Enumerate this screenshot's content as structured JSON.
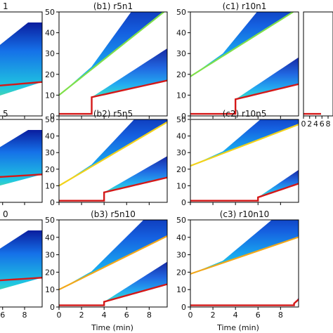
{
  "chart_data": {
    "type": "heatmap",
    "xlabel": "Time (min)",
    "xlim": [
      0,
      9.6
    ],
    "ylim": [
      0,
      50
    ],
    "xticks": [
      0,
      2,
      4,
      6,
      8
    ],
    "yticks": [
      0,
      10,
      20,
      30,
      40,
      50
    ],
    "panels": [
      {
        "id": "a1",
        "title": "1",
        "start": [
          0,
          10
        ],
        "slope": 1.6,
        "step_t": 0,
        "step_floor": 12,
        "floor_slope": 0.45,
        "ridge_color": "#39d98a",
        "partial": true
      },
      {
        "id": "b1",
        "title": "(b1) r5n1",
        "start": [
          0,
          10
        ],
        "slope": 4.3,
        "step_t": 2.9,
        "step_floor": 9,
        "floor_slope": 1.2,
        "ridge_color": "#7fe04a"
      },
      {
        "id": "c1",
        "title": "(c1) r10n1",
        "start": [
          0,
          19
        ],
        "slope": 3.4,
        "step_t": 4.0,
        "step_floor": 8,
        "floor_slope": 1.3,
        "ridge_color": "#7fe04a"
      },
      {
        "id": "d1",
        "title": "",
        "partial": true,
        "empty": true
      },
      {
        "id": "a2",
        "title": "5",
        "start": [
          0,
          12
        ],
        "slope": 1.4,
        "step_t": 0,
        "step_floor": 13,
        "floor_slope": 0.4,
        "ridge_color": "#39d98a",
        "partial": true
      },
      {
        "id": "b2",
        "title": "(b2) r5n5",
        "start": [
          0,
          10
        ],
        "slope": 4.0,
        "step_t": 4.0,
        "step_floor": 6,
        "floor_slope": 1.6,
        "ridge_color": "#f2d21a"
      },
      {
        "id": "c2",
        "title": "(c2) r10n5",
        "start": [
          0,
          22
        ],
        "slope": 2.6,
        "step_t": 6.0,
        "step_floor": 3,
        "floor_slope": 2.3,
        "ridge_color": "#f2d21a"
      },
      {
        "id": "a3",
        "title": "0",
        "start": [
          0,
          12
        ],
        "slope": 1.4,
        "step_t": 0,
        "step_floor": 13,
        "floor_slope": 0.4,
        "ridge_color": "#39d98a",
        "partial": true
      },
      {
        "id": "b3",
        "title": "(b3) r5n10",
        "start": [
          0,
          10
        ],
        "slope": 3.2,
        "step_t": 4.0,
        "step_floor": 3,
        "floor_slope": 1.8,
        "ridge_color": "#f2a81a"
      },
      {
        "id": "c3",
        "title": "(c3) r10n10",
        "start": [
          0,
          19
        ],
        "slope": 2.2,
        "step_t": 9.2,
        "step_floor": 2,
        "floor_slope": 6.0,
        "ridge_color": "#f2a81a"
      }
    ]
  }
}
